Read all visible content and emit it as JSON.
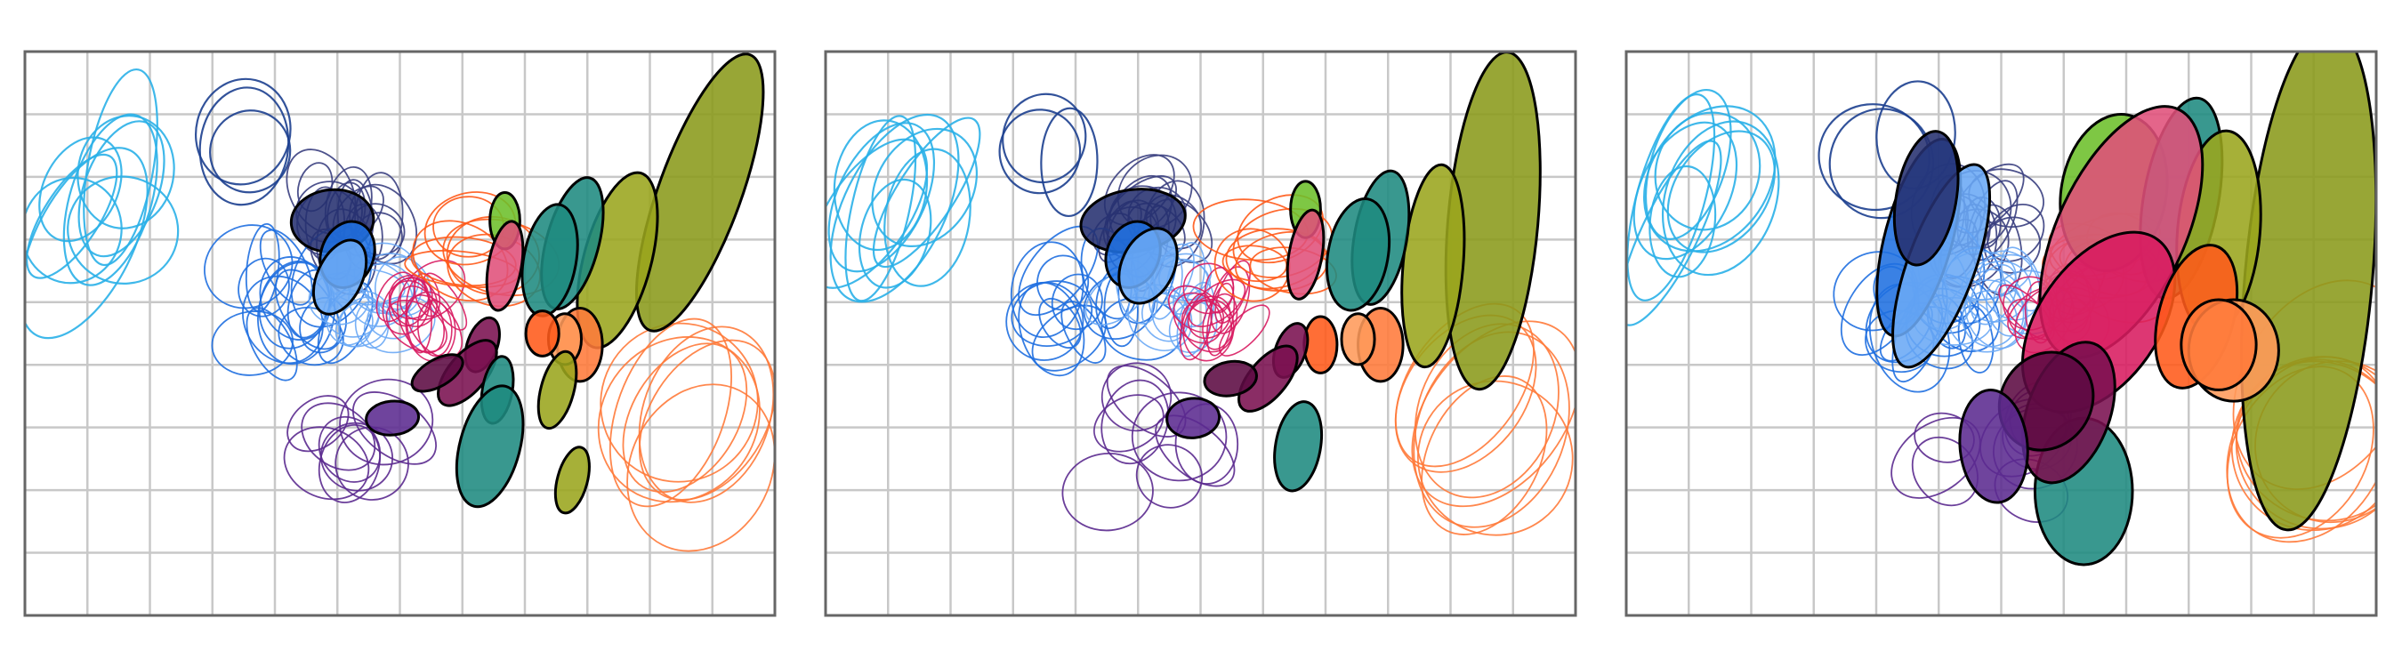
{
  "palette": {
    "sky": "#2ab0e8",
    "navy": "#1c3f8f",
    "indigo": "#253070",
    "slate": "#3a3f80",
    "royal": "#1f6fe0",
    "light_blue": "#6aa8f5",
    "crimson": "#d81b60",
    "magenta": "#c2185b",
    "plum": "#7a1050",
    "wine": "#5c0a42",
    "purple": "#5b2a8f",
    "teal": "#1e8a80",
    "green": "#6cbf2a",
    "olive": "#8a9a1a",
    "olive_dark": "#9aa51c",
    "rose": "#e0507a",
    "orange": "#ff5a1a",
    "peach": "#ff9a5a",
    "salmon": "#ff7a3a",
    "grid": "#c8c8c8",
    "frame": "#666666"
  },
  "panels": [
    {
      "id": "left"
    },
    {
      "id": "middle"
    },
    {
      "id": "right"
    }
  ]
}
